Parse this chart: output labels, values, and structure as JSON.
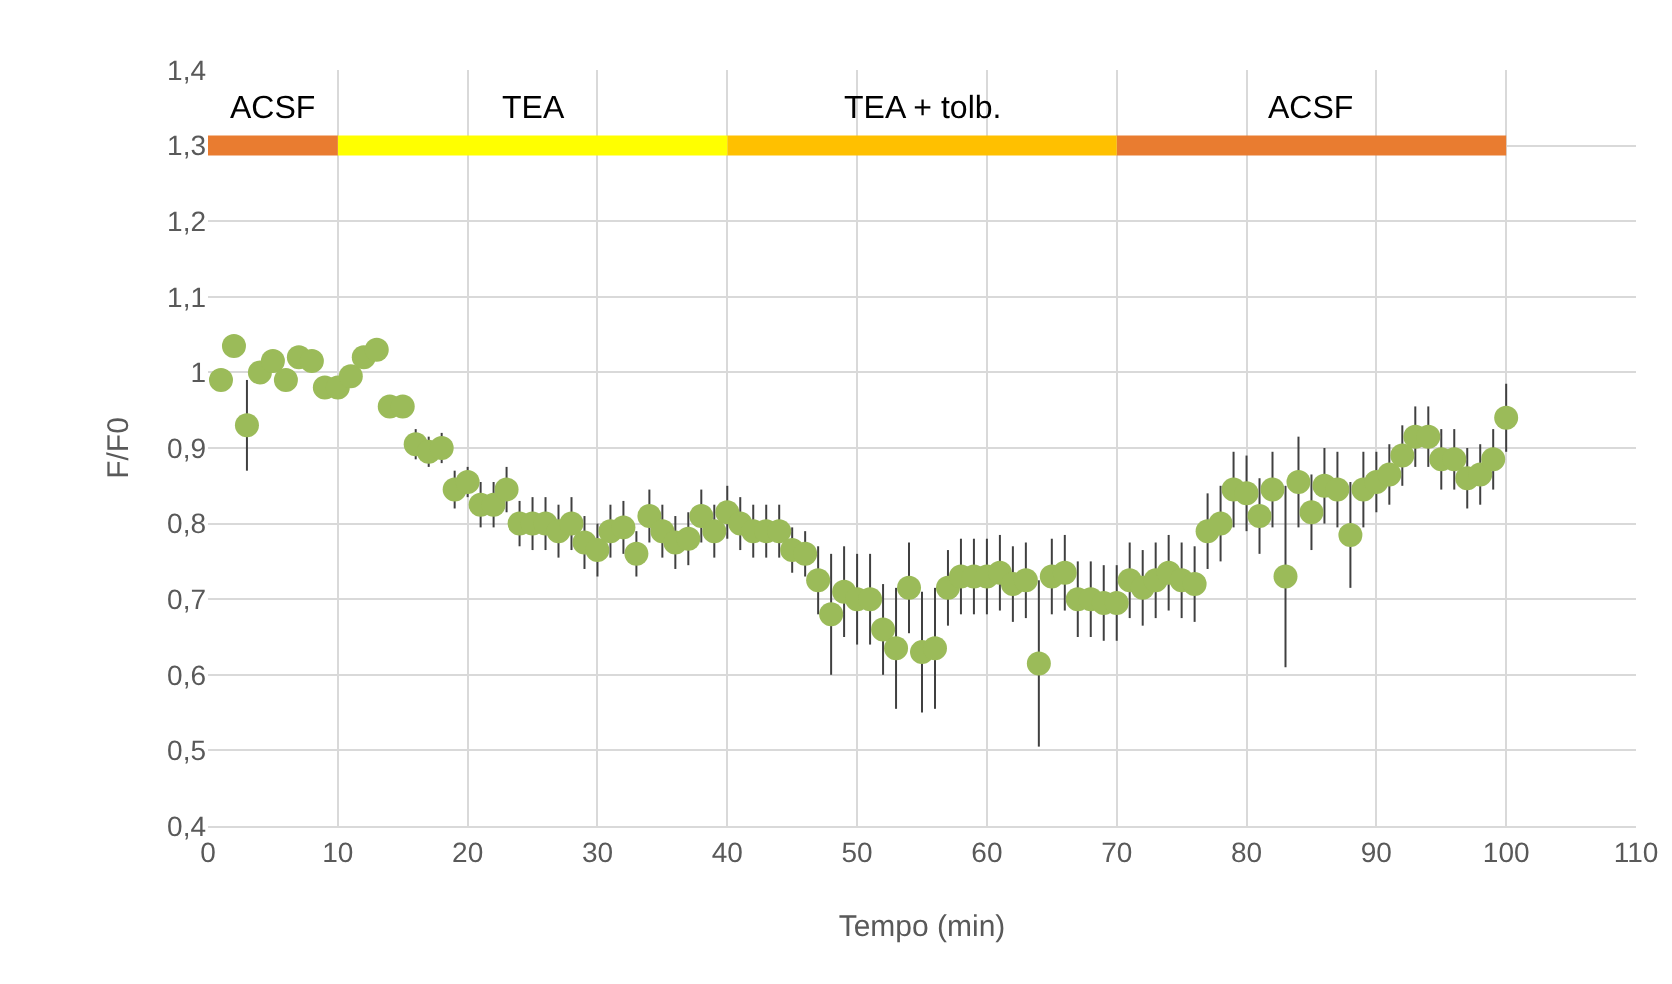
{
  "chart_data": {
    "type": "scatter",
    "xlabel": "Tempo (min)",
    "ylabel": "F/F0",
    "xlim": [
      0,
      110
    ],
    "xticks": [
      0,
      10,
      20,
      30,
      40,
      50,
      60,
      70,
      80,
      90,
      100,
      110
    ],
    "ylim": [
      0.4,
      1.4
    ],
    "yticks": [
      {
        "value": 0.4,
        "label": "0,4"
      },
      {
        "value": 0.5,
        "label": "0,5"
      },
      {
        "value": 0.6,
        "label": "0,6"
      },
      {
        "value": 0.7,
        "label": "0,7"
      },
      {
        "value": 0.8,
        "label": "0,8"
      },
      {
        "value": 0.9,
        "label": "0,9"
      },
      {
        "value": 1,
        "label": "1"
      },
      {
        "value": 1.1,
        "label": "1,1"
      },
      {
        "value": 1.2,
        "label": "1,2"
      },
      {
        "value": 1.3,
        "label": "1,3"
      },
      {
        "value": 1.4,
        "label": "1,4"
      }
    ],
    "grid": true,
    "x": [
      1,
      2,
      3,
      4,
      5,
      6,
      7,
      8,
      9,
      10,
      11,
      12,
      13,
      14,
      15,
      16,
      17,
      18,
      19,
      20,
      21,
      22,
      23,
      24,
      25,
      26,
      27,
      28,
      29,
      30,
      31,
      32,
      33,
      34,
      35,
      36,
      37,
      38,
      39,
      40,
      41,
      42,
      43,
      44,
      45,
      46,
      47,
      48,
      49,
      50,
      51,
      52,
      53,
      54,
      55,
      56,
      57,
      58,
      59,
      60,
      61,
      62,
      63,
      64,
      65,
      66,
      67,
      68,
      69,
      70,
      71,
      72,
      73,
      74,
      75,
      76,
      77,
      78,
      79,
      80,
      81,
      82,
      83,
      84,
      85,
      86,
      87,
      88,
      89,
      90,
      91,
      92,
      93,
      94,
      95,
      96,
      97,
      98,
      99,
      100
    ],
    "series": [
      {
        "color": "#9bbb59",
        "marker": "circle",
        "values": [
          0.99,
          1.035,
          0.93,
          1.0,
          1.015,
          0.99,
          1.02,
          1.015,
          0.98,
          0.98,
          0.995,
          1.02,
          1.03,
          0.955,
          0.955,
          0.905,
          0.895,
          0.9,
          0.845,
          0.855,
          0.825,
          0.825,
          0.845,
          0.8,
          0.8,
          0.8,
          0.79,
          0.8,
          0.775,
          0.765,
          0.79,
          0.795,
          0.76,
          0.81,
          0.79,
          0.775,
          0.78,
          0.81,
          0.79,
          0.815,
          0.8,
          0.79,
          0.79,
          0.79,
          0.765,
          0.76,
          0.725,
          0.68,
          0.71,
          0.7,
          0.7,
          0.66,
          0.635,
          0.715,
          0.63,
          0.635,
          0.715,
          0.73,
          0.73,
          0.73,
          0.735,
          0.72,
          0.725,
          0.615,
          0.73,
          0.735,
          0.7,
          0.7,
          0.695,
          0.695,
          0.725,
          0.715,
          0.725,
          0.735,
          0.725,
          0.72,
          0.79,
          0.8,
          0.845,
          0.84,
          0.81,
          0.845,
          0.73,
          0.855,
          0.815,
          0.85,
          0.845,
          0.785,
          0.845,
          0.855,
          0.865,
          0.89,
          0.915,
          0.915,
          0.885,
          0.885,
          0.86,
          0.865,
          0.885,
          0.94
        ],
        "errors": [
          null,
          null,
          0.06,
          null,
          null,
          null,
          null,
          null,
          null,
          null,
          null,
          null,
          null,
          null,
          null,
          0.02,
          0.02,
          0.02,
          0.025,
          0.02,
          0.03,
          0.03,
          0.03,
          0.03,
          0.035,
          0.035,
          0.035,
          0.035,
          0.035,
          0.035,
          0.035,
          0.035,
          0.03,
          0.035,
          0.035,
          0.035,
          0.035,
          0.035,
          0.035,
          0.035,
          0.035,
          0.035,
          0.035,
          0.035,
          0.03,
          0.03,
          0.045,
          0.08,
          0.06,
          0.06,
          0.06,
          0.06,
          0.08,
          0.06,
          0.08,
          0.08,
          0.05,
          0.05,
          0.05,
          0.05,
          0.05,
          0.05,
          0.05,
          0.11,
          0.05,
          0.05,
          0.05,
          0.05,
          0.05,
          0.05,
          0.05,
          0.05,
          0.05,
          0.05,
          0.05,
          0.05,
          0.05,
          0.05,
          0.05,
          0.05,
          0.05,
          0.05,
          0.12,
          0.06,
          0.05,
          0.05,
          0.05,
          0.07,
          0.05,
          0.04,
          0.04,
          0.04,
          0.04,
          0.04,
          0.04,
          0.04,
          0.04,
          0.04,
          0.04,
          0.045
        ]
      },
      {
        "type": "line",
        "name": "ACSF",
        "color": "#e97c30",
        "x": [
          0,
          10
        ],
        "values": [
          1.3,
          1.3
        ]
      },
      {
        "type": "line",
        "name": "TEA",
        "color": "#ffff00",
        "x": [
          10,
          40
        ],
        "values": [
          1.3,
          1.3
        ]
      },
      {
        "type": "line",
        "name": "TEA + tolb.",
        "color": "#ffc000",
        "x": [
          40,
          70
        ],
        "values": [
          1.3,
          1.3
        ]
      },
      {
        "type": "line",
        "name": "ACSF",
        "color": "#e97c30",
        "x": [
          70,
          100
        ],
        "values": [
          1.3,
          1.3
        ]
      }
    ]
  }
}
